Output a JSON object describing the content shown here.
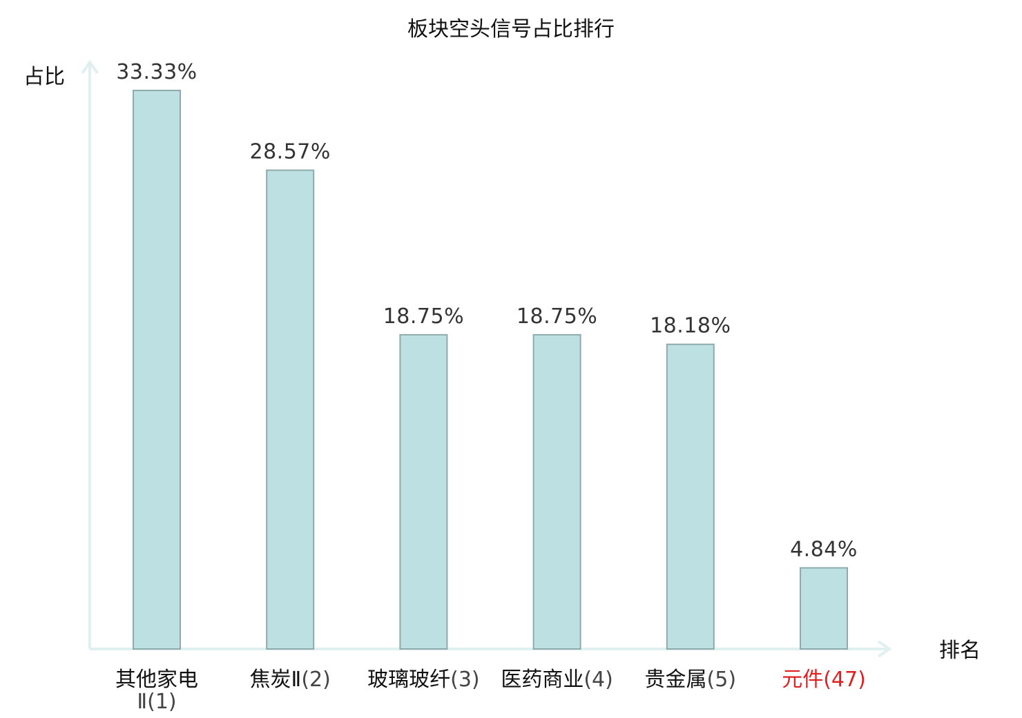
{
  "chart_data": {
    "type": "bar",
    "title": "板块空头信号占比排行",
    "xlabel": "排名",
    "ylabel": "占比",
    "categories": [
      {
        "name": "其他家电Ⅱ",
        "rank": "(1)",
        "highlight": false
      },
      {
        "name": "焦炭Ⅱ",
        "rank": "(2)",
        "highlight": false
      },
      {
        "name": "玻璃玻纤",
        "rank": "(3)",
        "highlight": false
      },
      {
        "name": "医药商业",
        "rank": "(4)",
        "highlight": false
      },
      {
        "name": "贵金属",
        "rank": "(5)",
        "highlight": false
      },
      {
        "name": "元件",
        "rank": "(47)",
        "highlight": true
      }
    ],
    "values": [
      33.33,
      28.57,
      18.75,
      18.75,
      18.18,
      4.84
    ],
    "value_labels": [
      "33.33%",
      "28.57%",
      "18.75%",
      "18.75%",
      "18.18%",
      "4.84%"
    ],
    "ylim": [
      0,
      33.33
    ],
    "grid": false,
    "colors": {
      "bar_fill": "#bde0e3",
      "bar_stroke": "#8eaaab",
      "axis": "#dff0ee",
      "highlight": "#e02020"
    }
  }
}
